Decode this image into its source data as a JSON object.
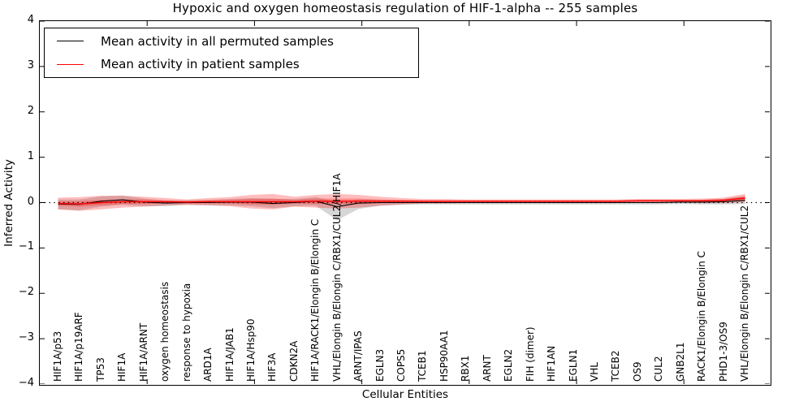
{
  "title": "Hypoxic and oxygen homeostasis regulation of HIF-1-alpha -- 255 samples",
  "axes": {
    "x_label": "Cellular Entities",
    "y_label": "Inferred Activity",
    "y_tick_labels": [
      "4",
      "3",
      "2",
      "1",
      "0",
      "−1",
      "−2",
      "−3",
      "−4"
    ]
  },
  "legend": {
    "items": [
      {
        "label": "Mean activity in all permuted samples",
        "color": "#000000"
      },
      {
        "label": "Mean activity in patient samples",
        "color": "#ff0000"
      }
    ]
  },
  "chart_data": {
    "type": "line",
    "title": "Hypoxic and oxygen homeostasis regulation of HIF-1-alpha -- 255 samples",
    "xlabel": "Cellular Entities",
    "ylabel": "Inferred Activity",
    "ylim": [
      -4,
      4
    ],
    "y_ticks": [
      4,
      3,
      2,
      1,
      0,
      -1,
      -2,
      -3,
      -4
    ],
    "grid": false,
    "zero_line": {
      "style": "dotted",
      "color": "#000000",
      "y": 0
    },
    "legend_position": "upper-left",
    "categories": [
      "HIF1A/p53",
      "HIF1A/p19ARF",
      "TP53",
      "HIF1A",
      "HIF1A/ARNT",
      "oxygen homeostasis",
      "response to hypoxia",
      "ARD1A",
      "HIF1A/JAB1",
      "HIF1A/Hsp90",
      "HIF3A",
      "CDKN2A",
      "HIF1A/RACK1/Elongin B/Elongin C",
      "VHL/Elongin B/Elongin C/RBX1/CUL2/HIF1A",
      "ARNT/IPAS",
      "EGLN3",
      "COPS5",
      "TCEB1",
      "HSP90AA1",
      "RBX1",
      "ARNT",
      "EGLN2",
      "FIH (dimer)",
      "HIF1AN",
      "EGLN1",
      "VHL",
      "TCEB2",
      "OS9",
      "CUL2",
      "GNB2L1",
      "RACK1/Elongin B/Elongin C",
      "PHD1-3/OS9",
      "VHL/Elongin B/Elongin C/RBX1/CUL2"
    ],
    "series": [
      {
        "name": "Mean activity in all permuted samples",
        "color": "#000000",
        "values": [
          -0.03,
          -0.04,
          0.03,
          0.06,
          0.01,
          -0.01,
          0,
          0,
          0.01,
          0.01,
          -0.02,
          0,
          0.03,
          -0.09,
          -0.01,
          0,
          0,
          0,
          0,
          0,
          0,
          0,
          0,
          0,
          0,
          0,
          0,
          0,
          0,
          0.01,
          0.01,
          0.02,
          0.05
        ],
        "band_upper": [
          0.1,
          0.11,
          0.11,
          0.1,
          0.08,
          0.06,
          0.05,
          0.06,
          0.07,
          0.09,
          0.1,
          0.08,
          0.09,
          0.1,
          0.08,
          0.06,
          0.05,
          0.04,
          0.04,
          0.04,
          0.04,
          0.04,
          0.04,
          0.04,
          0.04,
          0.04,
          0.04,
          0.04,
          0.04,
          0.04,
          0.05,
          0.06,
          0.08
        ],
        "band_lower": [
          0.12,
          0.13,
          0.12,
          0.11,
          0.09,
          0.07,
          0.05,
          0.06,
          0.07,
          0.09,
          0.1,
          0.08,
          0.1,
          0.3,
          0.13,
          0.07,
          0.05,
          0.04,
          0.04,
          0.04,
          0.04,
          0.04,
          0.04,
          0.04,
          0.04,
          0.04,
          0.04,
          0.04,
          0.04,
          0.04,
          0.05,
          0.06,
          0.08
        ],
        "band_color": "rgba(120,120,120,0.30)"
      },
      {
        "name": "Mean activity in patient samples",
        "color": "#ff0000",
        "values": [
          -0.02,
          -0.03,
          0,
          0.02,
          0.02,
          0.02,
          0.01,
          0.02,
          0.02,
          0.02,
          0.02,
          0.02,
          0.03,
          0.03,
          0.03,
          0.03,
          0.03,
          0.03,
          0.03,
          0.03,
          0.03,
          0.03,
          0.03,
          0.03,
          0.03,
          0.03,
          0.03,
          0.04,
          0.04,
          0.04,
          0.04,
          0.05,
          0.1
        ],
        "band_outer": [
          0.13,
          0.15,
          0.15,
          0.13,
          0.11,
          0.08,
          0.06,
          0.08,
          0.1,
          0.15,
          0.17,
          0.11,
          0.14,
          0.16,
          0.14,
          0.1,
          0.07,
          0.05,
          0.05,
          0.04,
          0.04,
          0.04,
          0.04,
          0.04,
          0.04,
          0.04,
          0.04,
          0.04,
          0.04,
          0.04,
          0.05,
          0.06,
          0.09
        ],
        "band_inner": [
          0.05,
          0.06,
          0.06,
          0.05,
          0.05,
          0.03,
          0.03,
          0.03,
          0.04,
          0.06,
          0.07,
          0.04,
          0.06,
          0.06,
          0.06,
          0.04,
          0.03,
          0.02,
          0.02,
          0.02,
          0.02,
          0.02,
          0.02,
          0.02,
          0.02,
          0.02,
          0.02,
          0.02,
          0.02,
          0.02,
          0.02,
          0.03,
          0.05
        ],
        "band_outer_color": "rgba(255,0,0,0.26)",
        "band_inner_color": "rgba(255,0,0,0.27)"
      }
    ]
  }
}
